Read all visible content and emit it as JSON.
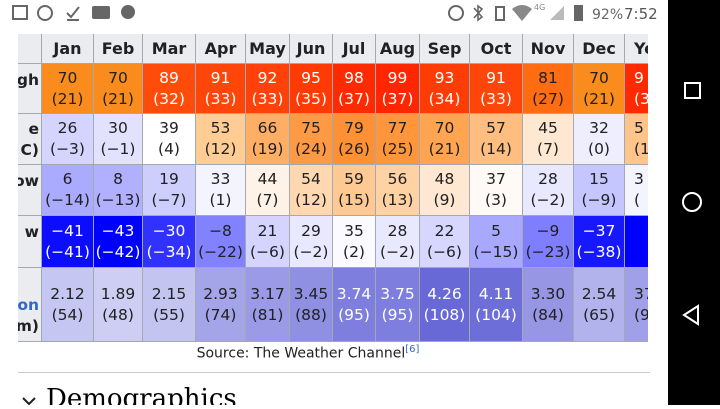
{
  "status_bar": {
    "network": "4G",
    "battery": "92%",
    "time": "7:52"
  },
  "table": {
    "columns": [
      "Jan",
      "Feb",
      "Mar",
      "Apr",
      "May",
      "Jun",
      "Jul",
      "Aug",
      "Sep",
      "Oct",
      "Nov",
      "Dec",
      "Ye"
    ],
    "rows": [
      {
        "label": [
          "gh"
        ],
        "cells": [
          [
            "70",
            "(21)"
          ],
          [
            "70",
            "(21)"
          ],
          [
            "89",
            "(32)"
          ],
          [
            "91",
            "(33)"
          ],
          [
            "92",
            "(33)"
          ],
          [
            "95",
            "(35)"
          ],
          [
            "98",
            "(37)"
          ],
          [
            "99",
            "(37)"
          ],
          [
            "93",
            "(34)"
          ],
          [
            "91",
            "(33)"
          ],
          [
            "81",
            "(27)"
          ],
          [
            "70",
            "(21)"
          ],
          [
            "9",
            "(3"
          ]
        ],
        "colors": [
          "#fa8c1e",
          "#fa8c1e",
          "#ff4c0a",
          "#ff460a",
          "#ff420a",
          "#ff3a05",
          "#ff2a00",
          "#ff2600",
          "#ff3c05",
          "#ff460a",
          "#ff6c12",
          "#fa8c1e",
          "#ff2a00"
        ]
      },
      {
        "label": [
          "e",
          "C)"
        ],
        "cells": [
          [
            "26",
            "(−3)"
          ],
          [
            "30",
            "(−1)"
          ],
          [
            "39",
            "(4)"
          ],
          [
            "53",
            "(12)"
          ],
          [
            "66",
            "(19)"
          ],
          [
            "75",
            "(24)"
          ],
          [
            "79",
            "(26)"
          ],
          [
            "77",
            "(25)"
          ],
          [
            "70",
            "(21)"
          ],
          [
            "57",
            "(14)"
          ],
          [
            "45",
            "(7)"
          ],
          [
            "32",
            "(0)"
          ],
          [
            "5",
            "(1"
          ]
        ],
        "colors": [
          "#d4d4ff",
          "#e2e2ff",
          "#ffffff",
          "#ffcc94",
          "#ffae66",
          "#ff9a44",
          "#ff9034",
          "#ff963c",
          "#ffa450",
          "#ffbe80",
          "#ffe8d2",
          "#eeeeff",
          "#ffc48a"
        ]
      },
      {
        "label": [
          "ow"
        ],
        "cells": [
          [
            "6",
            "(−14)"
          ],
          [
            "8",
            "(−13)"
          ],
          [
            "19",
            "(−7)"
          ],
          [
            "33",
            "(1)"
          ],
          [
            "44",
            "(7)"
          ],
          [
            "54",
            "(12)"
          ],
          [
            "59",
            "(15)"
          ],
          [
            "56",
            "(13)"
          ],
          [
            "48",
            "(9)"
          ],
          [
            "37",
            "(3)"
          ],
          [
            "28",
            "(−2)"
          ],
          [
            "15",
            "(−9)"
          ],
          [
            "3",
            "("
          ]
        ],
        "colors": [
          "#aaaaff",
          "#b0b0ff",
          "#cecefd",
          "#f4f4ff",
          "#fff2e6",
          "#ffd8b2",
          "#ffc994",
          "#ffd2a4",
          "#ffe8d2",
          "#fffaf6",
          "#e8e8ff",
          "#c6c6ff",
          "#f4f4ff"
        ]
      },
      {
        "label": [
          "w"
        ],
        "cells": [
          [
            "−41",
            "(−41)"
          ],
          [
            "−43",
            "(−42)"
          ],
          [
            "−30",
            "(−34)"
          ],
          [
            "−8",
            "(−22)"
          ],
          [
            "21",
            "(−6)"
          ],
          [
            "29",
            "(−2)"
          ],
          [
            "35",
            "(2)"
          ],
          [
            "28",
            "(−2)"
          ],
          [
            "22",
            "(−6)"
          ],
          [
            "5",
            "(−15)"
          ],
          [
            "−9",
            "(−23)"
          ],
          [
            "−37",
            "(−38)"
          ],
          []
        ],
        "colors": [
          "#0c0cff",
          "#0000ff",
          "#3232ff",
          "#8282ff",
          "#d4d4ff",
          "#e8e8ff",
          "#fafaff",
          "#e8e8ff",
          "#d6d6ff",
          "#a8a8ff",
          "#7e7eff",
          "#1818ff",
          "#0000ff"
        ]
      },
      {
        "label": [
          "on",
          "m)"
        ],
        "cells": [
          [
            "2.12",
            "(54)"
          ],
          [
            "1.89",
            "(48)"
          ],
          [
            "2.15",
            "(55)"
          ],
          [
            "2.93",
            "(74)"
          ],
          [
            "3.17",
            "(81)"
          ],
          [
            "3.45",
            "(88)"
          ],
          [
            "3.74",
            "(95)"
          ],
          [
            "3.75",
            "(95)"
          ],
          [
            "4.26",
            "(108)"
          ],
          [
            "4.11",
            "(104)"
          ],
          [
            "3.30",
            "(84)"
          ],
          [
            "2.54",
            "(65)"
          ],
          [
            "37",
            "(9"
          ]
        ],
        "colors": [
          "#c6c6f2",
          "#cecef4",
          "#c4c4f1",
          "#a4a4e9",
          "#9a9ae6",
          "#9090e3",
          "#7e7ede",
          "#7e7ede",
          "#6868d7",
          "#6e6ed9",
          "#9696e5",
          "#b2b2ed",
          "#a0a0e8"
        ]
      }
    ]
  },
  "source": {
    "text": "Source: The Weather Channel",
    "ref": "[6]"
  },
  "next_section": "Demographics"
}
